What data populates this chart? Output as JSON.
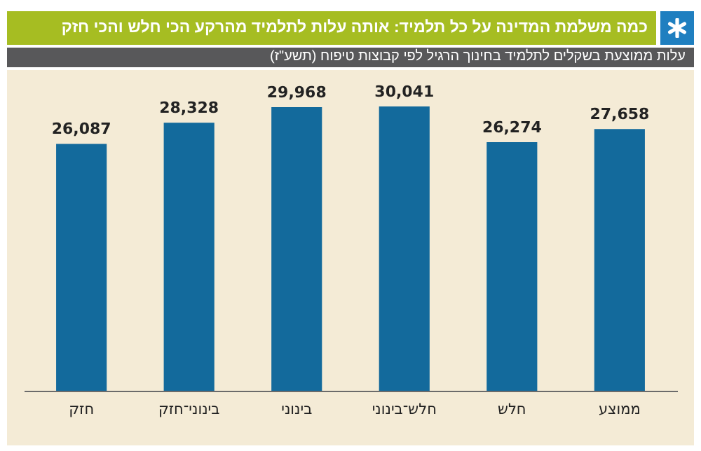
{
  "chart_data": {
    "type": "bar",
    "title": "כמה משלמת המדינה על כל  תלמיד: אותה עלות לתלמיד מהרקע הכי חלש והכי חזק",
    "subtitle": "עלות ממוצעת בשקלים לתלמיד בחינוך הרגיל לפי קבוצות טיפוח (תשע\"ז)",
    "categories": [
      "חזק",
      "בינוני־חזק",
      "בינוני",
      "חלש־בינוני",
      "חלש",
      "ממוצע"
    ],
    "values": [
      26087,
      28328,
      29968,
      30041,
      26274,
      27658
    ],
    "value_labels": [
      "26,087",
      "28,328",
      "29,968",
      "30,041",
      "26,274",
      "27,658"
    ],
    "color": "#136a9c",
    "tick_labels": "x"
  }
}
